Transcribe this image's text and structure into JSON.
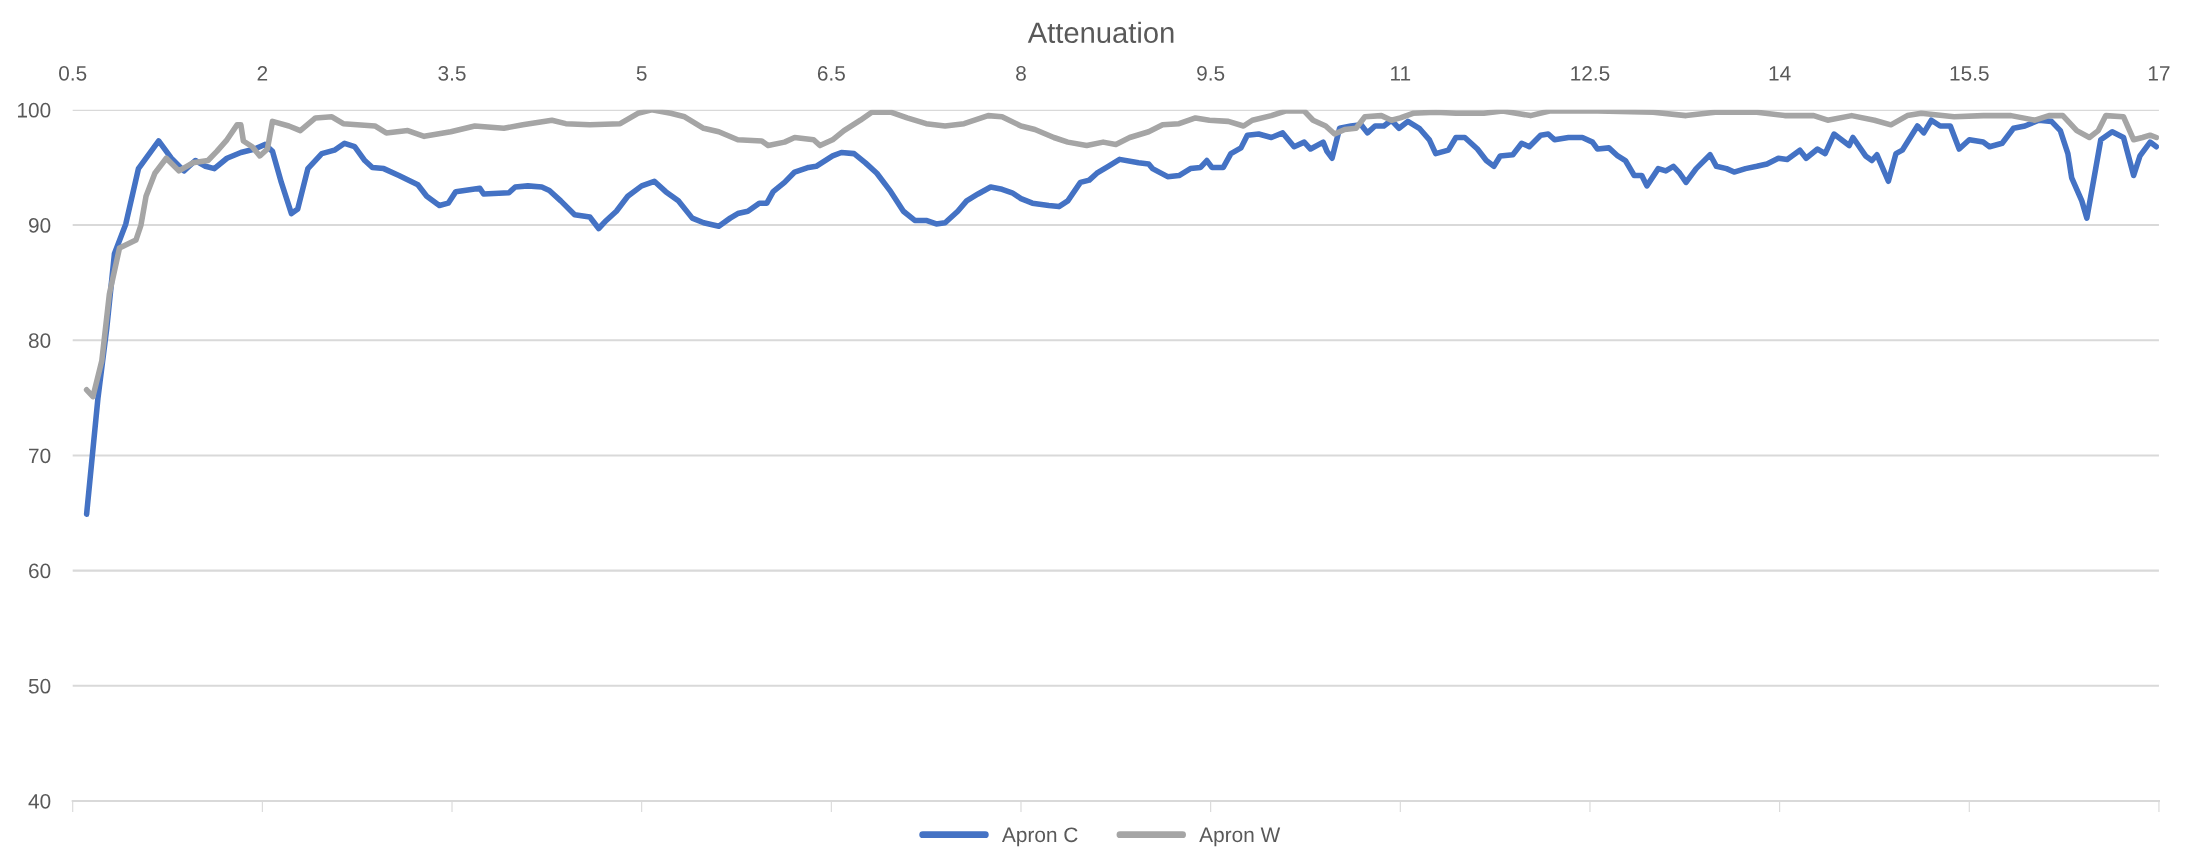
{
  "chart_data": {
    "type": "line",
    "title": "Attenuation",
    "xlim": [
      0.5,
      17
    ],
    "xticks": [
      0.5,
      2,
      3.5,
      5,
      6.5,
      8,
      9.5,
      11,
      12.5,
      14,
      15.5,
      17
    ],
    "ylim": [
      40,
      100
    ],
    "yticks": [
      40,
      50,
      60,
      70,
      80,
      90,
      100
    ],
    "grid": "y",
    "legend": "bottom",
    "marker": "none",
    "line_style": "solid",
    "series": [
      {
        "name": "Apron C",
        "color": "#4472c4",
        "x": [
          0.61,
          0.7,
          0.77,
          0.83,
          0.92,
          1.02,
          1.18,
          1.28,
          1.38,
          1.47,
          1.55,
          1.62,
          1.72,
          1.83,
          1.94,
          2.02,
          2.08,
          2.15,
          2.23,
          2.28,
          2.36,
          2.47,
          2.57,
          2.65,
          2.73,
          2.81,
          2.87,
          2.96,
          3.08,
          3.23,
          3.3,
          3.4,
          3.47,
          3.53,
          3.72,
          3.75,
          3.95,
          4.0,
          4.1,
          4.21,
          4.27,
          4.36,
          4.47,
          4.59,
          4.66,
          4.72,
          4.8,
          4.89,
          5.0,
          5.1,
          5.19,
          5.29,
          5.4,
          5.49,
          5.61,
          5.7,
          5.76,
          5.84,
          5.93,
          5.99,
          6.04,
          6.13,
          6.21,
          6.32,
          6.38,
          6.51,
          6.58,
          6.68,
          6.77,
          6.86,
          6.97,
          7.07,
          7.16,
          7.25,
          7.33,
          7.4,
          7.5,
          7.57,
          7.66,
          7.76,
          7.85,
          7.93,
          8.0,
          8.09,
          8.22,
          8.3,
          8.37,
          8.47,
          8.54,
          8.6,
          8.69,
          8.78,
          8.93,
          9.01,
          9.04,
          9.16,
          9.25,
          9.34,
          9.42,
          9.47,
          9.51,
          9.6,
          9.66,
          9.74,
          9.79,
          9.88,
          9.98,
          10.07,
          10.16,
          10.24,
          10.29,
          10.39,
          10.42,
          10.46,
          10.52,
          10.61,
          10.69,
          10.74,
          10.8,
          10.87,
          10.93,
          10.99,
          11.06,
          11.15,
          11.23,
          11.28,
          11.38,
          11.44,
          11.51,
          11.61,
          11.68,
          11.74,
          11.79,
          11.89,
          11.96,
          12.02,
          12.11,
          12.17,
          12.22,
          12.33,
          12.44,
          12.52,
          12.56,
          12.65,
          12.72,
          12.78,
          12.85,
          12.91,
          12.95,
          13.04,
          13.1,
          13.16,
          13.21,
          13.26,
          13.34,
          13.45,
          13.5,
          13.58,
          13.64,
          13.73,
          13.82,
          13.9,
          13.99,
          14.06,
          14.16,
          14.21,
          14.3,
          14.36,
          14.43,
          14.49,
          14.55,
          14.58,
          14.68,
          14.73,
          14.77,
          14.86,
          14.92,
          14.97,
          15.09,
          15.14,
          15.2,
          15.27,
          15.35,
          15.42,
          15.5,
          15.61,
          15.66,
          15.76,
          15.85,
          15.94,
          16.05,
          16.15,
          16.22,
          16.28,
          16.31,
          16.39,
          16.43,
          16.5,
          16.54,
          16.63,
          16.72,
          16.8,
          16.85,
          16.93,
          16.98
        ],
        "values": [
          64.9,
          75.0,
          81.1,
          87.5,
          90.1,
          94.9,
          97.3,
          95.8,
          94.7,
          95.6,
          95.1,
          94.9,
          95.8,
          96.3,
          96.6,
          97.0,
          96.4,
          93.7,
          91.0,
          91.4,
          94.9,
          96.2,
          96.5,
          97.1,
          96.8,
          95.6,
          95.0,
          94.9,
          94.3,
          93.5,
          92.5,
          91.7,
          91.9,
          92.9,
          93.2,
          92.7,
          92.8,
          93.3,
          93.4,
          93.3,
          93.0,
          92.1,
          90.9,
          90.7,
          89.7,
          90.4,
          91.2,
          92.5,
          93.4,
          93.8,
          92.9,
          92.1,
          90.6,
          90.2,
          89.9,
          90.6,
          91.0,
          91.2,
          91.9,
          91.9,
          92.9,
          93.7,
          94.6,
          95.0,
          95.1,
          96.0,
          96.3,
          96.2,
          95.4,
          94.5,
          92.9,
          91.2,
          90.4,
          90.4,
          90.1,
          90.2,
          91.2,
          92.1,
          92.7,
          93.3,
          93.1,
          92.8,
          92.3,
          91.9,
          91.7,
          91.6,
          92.1,
          93.7,
          93.9,
          94.5,
          95.1,
          95.7,
          95.4,
          95.3,
          94.9,
          94.2,
          94.3,
          94.9,
          95.0,
          95.6,
          95.0,
          95.0,
          96.2,
          96.7,
          97.8,
          97.9,
          97.6,
          98.0,
          96.8,
          97.2,
          96.6,
          97.2,
          96.4,
          95.8,
          98.4,
          98.6,
          98.7,
          98.0,
          98.6,
          98.6,
          99.1,
          98.4,
          99.0,
          98.4,
          97.4,
          96.2,
          96.5,
          97.6,
          97.6,
          96.6,
          95.6,
          95.1,
          96.0,
          96.1,
          97.1,
          96.8,
          97.8,
          97.9,
          97.4,
          97.6,
          97.6,
          97.2,
          96.6,
          96.7,
          96.0,
          95.6,
          94.3,
          94.3,
          93.4,
          94.9,
          94.7,
          95.1,
          94.5,
          93.7,
          94.9,
          96.1,
          95.1,
          94.9,
          94.6,
          94.9,
          95.1,
          95.3,
          95.8,
          95.7,
          96.5,
          95.8,
          96.6,
          96.2,
          97.9,
          97.4,
          96.9,
          97.6,
          96.0,
          95.6,
          96.1,
          93.8,
          96.2,
          96.5,
          98.6,
          98.0,
          99.1,
          98.6,
          98.6,
          96.6,
          97.4,
          97.2,
          96.8,
          97.1,
          98.4,
          98.6,
          99.1,
          99.0,
          98.2,
          96.2,
          94.1,
          92.1,
          90.6,
          94.9,
          97.4,
          98.1,
          97.6,
          94.3,
          96.0,
          97.2,
          96.8
        ]
      },
      {
        "name": "Apron W",
        "color": "#a5a5a5",
        "x": [
          0.61,
          0.66,
          0.73,
          0.79,
          0.87,
          1.0,
          1.04,
          1.08,
          1.15,
          1.24,
          1.34,
          1.45,
          1.57,
          1.64,
          1.72,
          1.8,
          1.83,
          1.85,
          1.92,
          1.98,
          2.04,
          2.08,
          2.21,
          2.3,
          2.42,
          2.55,
          2.64,
          2.89,
          2.98,
          3.15,
          3.28,
          3.49,
          3.68,
          3.91,
          4.06,
          4.29,
          4.4,
          4.59,
          4.83,
          4.97,
          5.08,
          5.23,
          5.34,
          5.49,
          5.61,
          5.76,
          5.95,
          6.0,
          6.13,
          6.21,
          6.36,
          6.41,
          6.51,
          6.6,
          6.73,
          6.82,
          6.97,
          7.1,
          7.25,
          7.4,
          7.55,
          7.74,
          7.85,
          8.0,
          8.11,
          8.26,
          8.37,
          8.52,
          8.65,
          8.75,
          8.86,
          9.01,
          9.12,
          9.25,
          9.38,
          9.49,
          9.64,
          9.76,
          9.83,
          9.98,
          10.09,
          10.24,
          10.31,
          10.41,
          10.48,
          10.56,
          10.65,
          10.72,
          10.85,
          10.93,
          11.0,
          11.1,
          11.28,
          11.44,
          11.66,
          11.81,
          12.03,
          12.18,
          12.56,
          13.0,
          13.26,
          13.49,
          13.82,
          14.04,
          14.27,
          14.38,
          14.57,
          14.75,
          14.88,
          15.01,
          15.12,
          15.38,
          15.61,
          15.83,
          16.02,
          16.13,
          16.24,
          16.35,
          16.45,
          16.52,
          16.58,
          16.72,
          16.8,
          16.87,
          16.93,
          16.98
        ],
        "values": [
          75.7,
          75.1,
          78.2,
          84.0,
          88.0,
          88.7,
          90.0,
          92.5,
          94.5,
          95.8,
          94.7,
          95.4,
          95.6,
          96.4,
          97.4,
          98.7,
          98.7,
          97.3,
          96.8,
          96.0,
          96.6,
          99.0,
          98.6,
          98.2,
          99.3,
          99.4,
          98.8,
          98.6,
          98.0,
          98.2,
          97.7,
          98.1,
          98.6,
          98.4,
          98.7,
          99.1,
          98.8,
          98.7,
          98.8,
          99.7,
          100.0,
          99.7,
          99.4,
          98.4,
          98.1,
          97.4,
          97.3,
          96.9,
          97.2,
          97.6,
          97.4,
          96.9,
          97.4,
          98.2,
          99.1,
          99.8,
          99.8,
          99.3,
          98.8,
          98.6,
          98.8,
          99.5,
          99.4,
          98.6,
          98.3,
          97.6,
          97.2,
          96.9,
          97.2,
          97.0,
          97.6,
          98.1,
          98.7,
          98.8,
          99.3,
          99.1,
          99.0,
          98.6,
          99.1,
          99.5,
          99.9,
          99.9,
          99.1,
          98.6,
          97.9,
          98.3,
          98.4,
          99.4,
          99.5,
          99.1,
          99.3,
          99.7,
          99.8,
          99.7,
          99.7,
          99.9,
          99.5,
          99.9,
          99.9,
          99.8,
          99.5,
          99.8,
          99.8,
          99.5,
          99.5,
          99.1,
          99.5,
          99.1,
          98.7,
          99.5,
          99.7,
          99.4,
          99.5,
          99.5,
          99.1,
          99.5,
          99.5,
          98.2,
          97.6,
          98.2,
          99.5,
          99.4,
          97.4,
          97.6,
          97.8,
          97.6
        ]
      }
    ]
  }
}
